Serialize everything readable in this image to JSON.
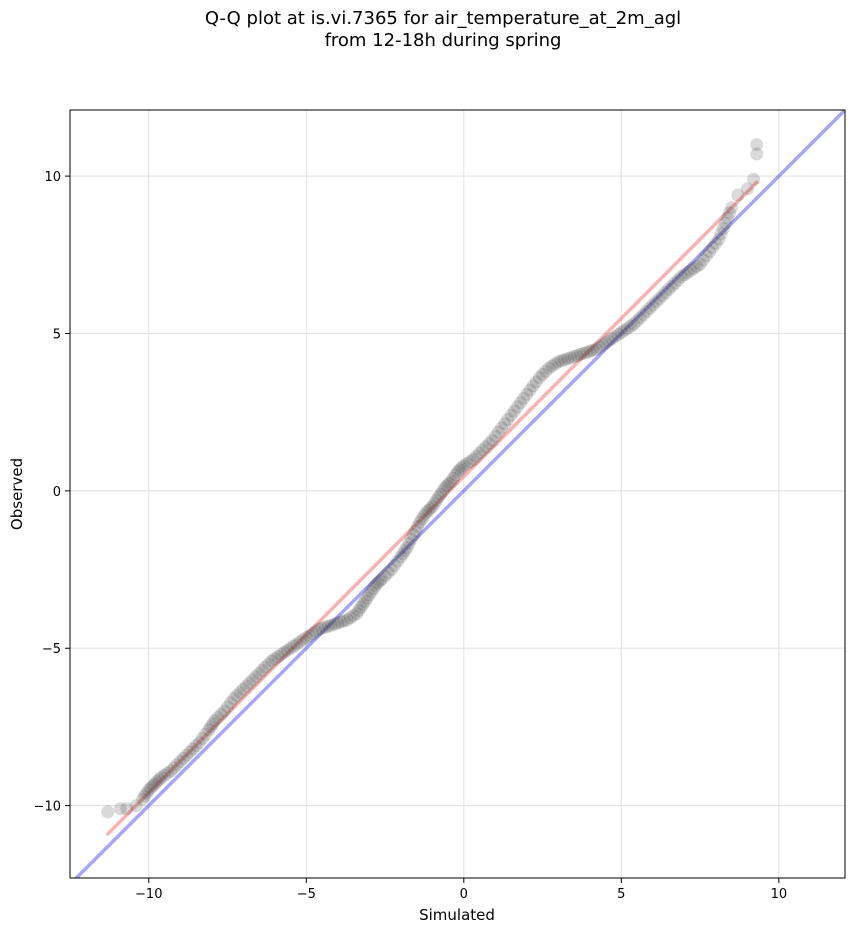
{
  "chart_data": {
    "type": "scatter",
    "title": "Q-Q plot at is.vi.7365 for air_temperature_at_2m_agl",
    "subtitle": "from 12-18h during spring",
    "xlabel": "Simulated",
    "ylabel": "Observed",
    "xlim": [
      -12.5,
      12.1
    ],
    "ylim": [
      -12.3,
      12.1
    ],
    "xticks": [
      -10,
      -5,
      0,
      5,
      10
    ],
    "yticks": [
      -10,
      -5,
      0,
      5,
      10
    ],
    "xtick_labels": [
      "−10",
      "−5",
      "0",
      "5",
      "10"
    ],
    "ytick_labels": [
      "−10",
      "−5",
      "0",
      "5",
      "10"
    ],
    "grid": true,
    "reference_lines": [
      {
        "color": "#0000dd",
        "x": [
          -12.5,
          12.1
        ],
        "y": [
          -12.5,
          12.1
        ]
      },
      {
        "color": "#ee2222",
        "x": [
          -11.3,
          9.3
        ],
        "y": [
          -10.9,
          9.8
        ]
      }
    ],
    "points": {
      "x": [
        -11.3,
        -10.9,
        -10.7,
        -10.4,
        -10.2,
        -10.0,
        -9.8,
        -9.6,
        -9.3,
        -9.0,
        -8.7,
        -8.4,
        -8.1,
        -7.9,
        -7.6,
        -7.3,
        -7.0,
        -6.7,
        -6.4,
        -6.1,
        -5.8,
        -5.5,
        -5.2,
        -4.9,
        -4.6,
        -4.3,
        -4.0,
        -3.7,
        -3.4,
        -3.2,
        -3.0,
        -2.8,
        -2.6,
        -2.3,
        -2.0,
        -1.8,
        -1.6,
        -1.4,
        -1.2,
        -1.0,
        -0.8,
        -0.6,
        -0.4,
        -0.2,
        0.0,
        0.3,
        0.6,
        0.9,
        1.2,
        1.5,
        1.8,
        2.1,
        2.4,
        2.7,
        3.0,
        3.3,
        3.6,
        3.9,
        4.2,
        4.5,
        4.8,
        5.1,
        5.4,
        5.7,
        6.0,
        6.3,
        6.6,
        6.9,
        7.2,
        7.5,
        7.8,
        8.1,
        8.3,
        8.5,
        8.7,
        9.0,
        9.2,
        9.3,
        9.3
      ],
      "y": [
        -10.2,
        -10.1,
        -10.1,
        -10.0,
        -9.8,
        -9.5,
        -9.3,
        -9.1,
        -8.9,
        -8.6,
        -8.3,
        -8.0,
        -7.6,
        -7.3,
        -7.0,
        -6.6,
        -6.3,
        -6.0,
        -5.7,
        -5.4,
        -5.2,
        -5.0,
        -4.8,
        -4.6,
        -4.4,
        -4.3,
        -4.2,
        -4.1,
        -3.9,
        -3.6,
        -3.3,
        -3.0,
        -2.8,
        -2.5,
        -2.1,
        -1.8,
        -1.4,
        -1.0,
        -0.7,
        -0.5,
        -0.2,
        0.1,
        0.3,
        0.6,
        0.8,
        1.0,
        1.3,
        1.6,
        2.0,
        2.4,
        2.8,
        3.2,
        3.6,
        3.9,
        4.1,
        4.2,
        4.3,
        4.4,
        4.5,
        4.7,
        4.9,
        5.1,
        5.3,
        5.6,
        5.9,
        6.2,
        6.5,
        6.8,
        7.0,
        7.2,
        7.6,
        8.0,
        8.5,
        9.0,
        9.4,
        9.6,
        9.9,
        10.7,
        11.0
      ]
    }
  }
}
